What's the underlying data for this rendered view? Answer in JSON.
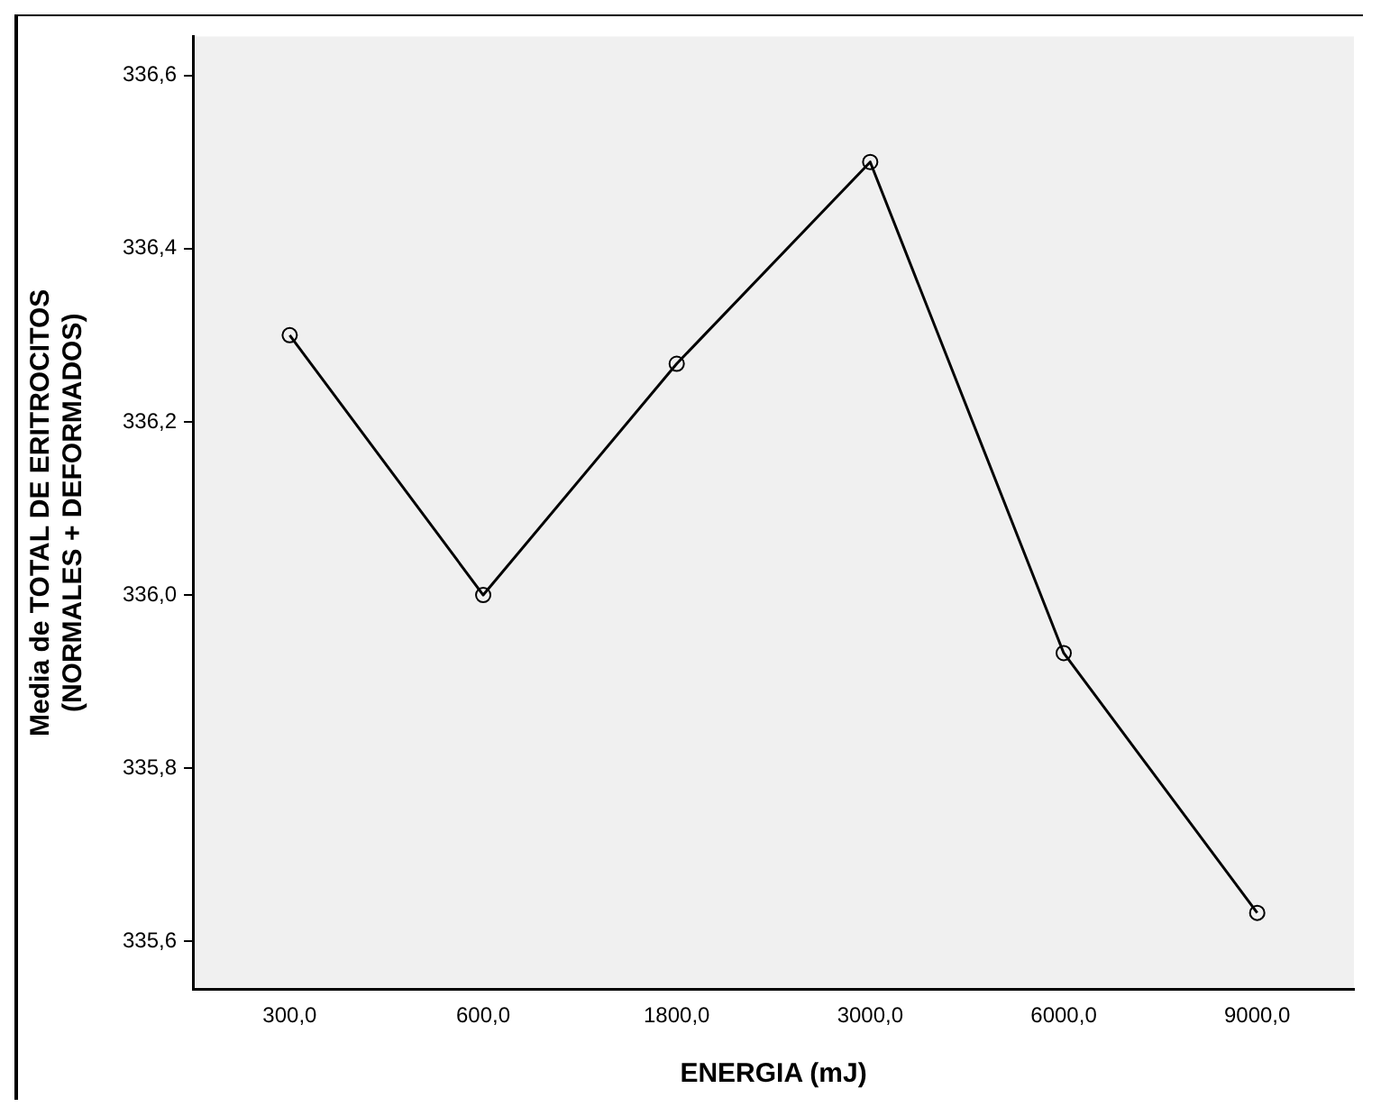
{
  "chart_data": {
    "type": "line",
    "xlabel": "ENERGIA (mJ)",
    "ylabel": "Media de TOTAL DE ERITROCITOS (NORMALES + DEFORMADOS)",
    "categories": [
      "300,0",
      "600,0",
      "1800,0",
      "3000,0",
      "6000,0",
      "9000,0"
    ],
    "values": [
      336.3,
      336.0,
      336.267,
      336.5,
      335.933,
      335.633
    ],
    "color": "#000000",
    "ylim": [
      335.545,
      336.645
    ],
    "yticks": [
      {
        "value": 335.6,
        "label": "335,6"
      },
      {
        "value": 335.8,
        "label": "335,8"
      },
      {
        "value": 336.0,
        "label": "336,0"
      },
      {
        "value": 336.2,
        "label": "336,2"
      },
      {
        "value": 336.4,
        "label": "336,4"
      },
      {
        "value": 336.6,
        "label": "336,6"
      }
    ],
    "grid": false,
    "legend": false,
    "marker": "circle",
    "line_style": "solid"
  }
}
